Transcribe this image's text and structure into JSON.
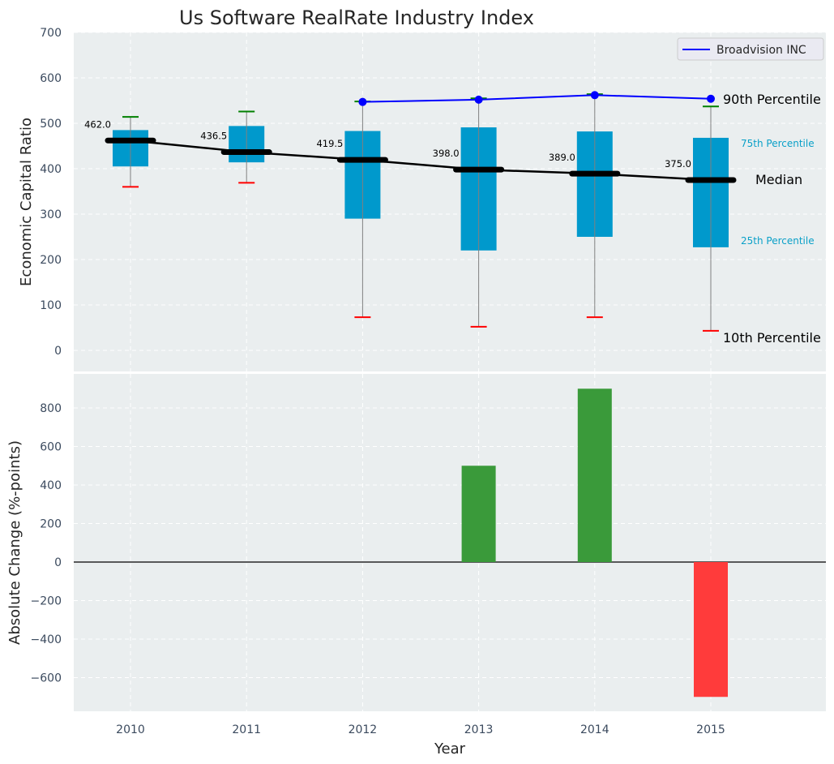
{
  "chart_data": [
    {
      "type": "box",
      "title": "Us Software RealRate Industry Index",
      "xlabel": "",
      "ylabel": "Economic Capital Ratio",
      "ylim": [
        -50,
        700
      ],
      "yticks": [
        0,
        100,
        200,
        300,
        400,
        500,
        600,
        700
      ],
      "grid": true,
      "categories": [
        "2010",
        "2011",
        "2012",
        "2013",
        "2014",
        "2015"
      ],
      "percentile_10": [
        360,
        369,
        73,
        52,
        73,
        43
      ],
      "percentile_25": [
        405,
        414,
        290,
        220,
        250,
        227
      ],
      "median": [
        462.0,
        436.5,
        419.5,
        398.0,
        389.0,
        375.0
      ],
      "percentile_75": [
        485,
        494,
        483,
        491,
        482,
        468
      ],
      "percentile_90": [
        514,
        526,
        548,
        555,
        564,
        537
      ],
      "median_labels": [
        "462.0",
        "436.5",
        "419.5",
        "398.0",
        "389.0",
        "375.0"
      ],
      "series": [
        {
          "name": "Broadvision INC",
          "color": "#0000ff",
          "x": [
            "2012",
            "2013",
            "2014",
            "2015"
          ],
          "values": [
            547,
            552,
            562,
            554
          ]
        }
      ],
      "legend": {
        "placement": "top-right",
        "entries": [
          "Broadvision INC"
        ]
      },
      "annotations": {
        "p90": "90th Percentile",
        "p75": "75th Percentile",
        "median": "Median",
        "p25": "25th Percentile",
        "p10": "10th Percentile"
      },
      "colors": {
        "box": "#0099cc",
        "median": "#000000",
        "p90_cap": "#008000",
        "p10_cap": "#ff0000",
        "whisker": "#808080"
      }
    },
    {
      "type": "bar",
      "title": "",
      "xlabel": "Year",
      "ylabel": "Absolute Change (%-points)",
      "ylim": [
        -780,
        980
      ],
      "yticks": [
        -600,
        -400,
        -200,
        0,
        200,
        400,
        600,
        800
      ],
      "ytick_labels": [
        "−600",
        "−400",
        "−200",
        "0",
        "200",
        "400",
        "600",
        "800"
      ],
      "grid": true,
      "categories": [
        "2010",
        "2011",
        "2012",
        "2013",
        "2014",
        "2015"
      ],
      "values": [
        null,
        null,
        null,
        500,
        900,
        -700
      ],
      "colors": {
        "positive": "#3a9a3a",
        "negative": "#ff3b3b"
      }
    }
  ]
}
